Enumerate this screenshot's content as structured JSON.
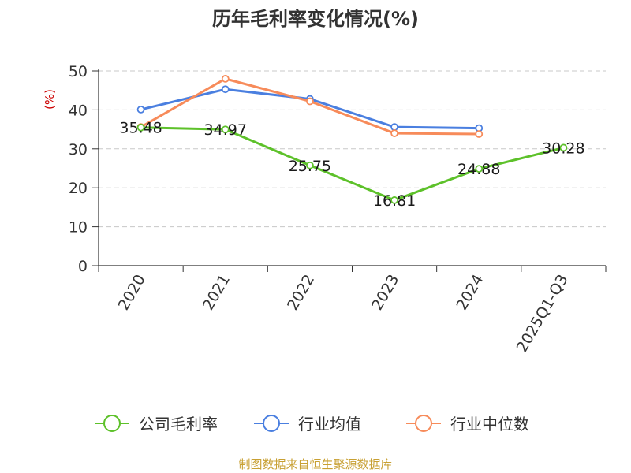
{
  "chart_data": {
    "type": "line",
    "title": "历年毛利率变化情况(%)",
    "ylabel": "(%)",
    "ylabel_color": "#cc0000",
    "ylim": [
      0,
      50
    ],
    "yticks": [
      0,
      10,
      20,
      30,
      40,
      50
    ],
    "categories": [
      "2020",
      "2021",
      "2022",
      "2023",
      "2024",
      "2025Q1-Q3"
    ],
    "grid": "horizontal dashed",
    "legend_position": "bottom",
    "series": [
      {
        "name": "公司毛利率",
        "color": "#5dc12a",
        "values": [
          35.48,
          34.97,
          25.75,
          16.81,
          24.88,
          30.28
        ],
        "labels": [
          "35.48",
          "34.97",
          "25.75",
          "16.81",
          "24.88",
          "30.28"
        ]
      },
      {
        "name": "行业均值",
        "color": "#4a7fe0",
        "values": [
          40.1,
          45.3,
          42.8,
          35.6,
          35.3,
          null
        ]
      },
      {
        "name": "行业中位数",
        "color": "#f78b5a",
        "values": [
          35.6,
          48.0,
          42.2,
          34.0,
          33.8,
          null
        ]
      }
    ],
    "source": "制图数据来自恒生聚源数据库",
    "source_color": "#c8a033"
  }
}
